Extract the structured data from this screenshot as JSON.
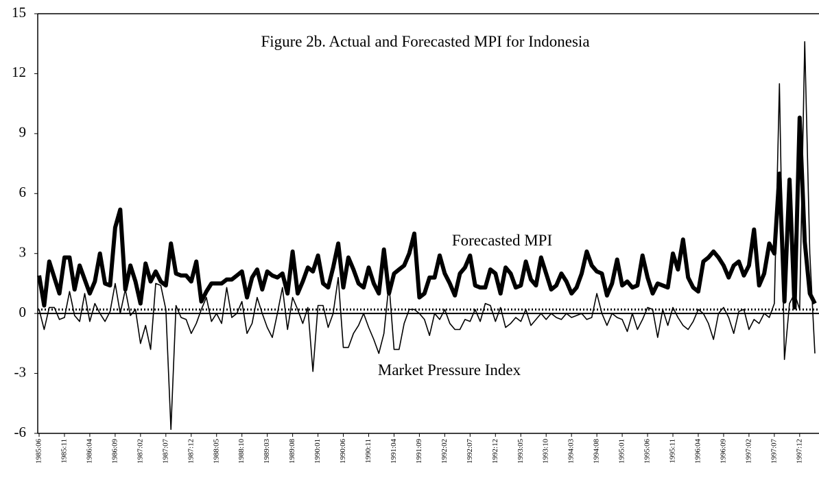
{
  "chart_data": {
    "type": "line",
    "title": "Figure 2b. Actual and Forecasted MPI for Indonesia",
    "categories": [
      "1985:06",
      null,
      null,
      null,
      null,
      "1985:11",
      null,
      null,
      null,
      null,
      "1986:04",
      null,
      null,
      null,
      null,
      "1986:09",
      null,
      null,
      null,
      null,
      "1987:02",
      null,
      null,
      null,
      null,
      "1987:07",
      null,
      null,
      null,
      null,
      "1987:12",
      null,
      null,
      null,
      null,
      "1988:05",
      null,
      null,
      null,
      null,
      "1988:10",
      null,
      null,
      null,
      null,
      "1989:03",
      null,
      null,
      null,
      null,
      "1989:08",
      null,
      null,
      null,
      null,
      "1990:01",
      null,
      null,
      null,
      null,
      "1990:06",
      null,
      null,
      null,
      null,
      "1990:11",
      null,
      null,
      null,
      null,
      "1991:04",
      null,
      null,
      null,
      null,
      "1991:09",
      null,
      null,
      null,
      null,
      "1992:02",
      null,
      null,
      null,
      null,
      "1992:07",
      null,
      null,
      null,
      null,
      "1992:12",
      null,
      null,
      null,
      null,
      "1993:05",
      null,
      null,
      null,
      null,
      "1993:10",
      null,
      null,
      null,
      null,
      "1994:03",
      null,
      null,
      null,
      null,
      "1994:08",
      null,
      null,
      null,
      null,
      "1995:01",
      null,
      null,
      null,
      null,
      "1995:06",
      null,
      null,
      null,
      null,
      "1995:11",
      null,
      null,
      null,
      null,
      "1996:04",
      null,
      null,
      null,
      null,
      "1996:09",
      null,
      null,
      null,
      null,
      "1997:02",
      null,
      null,
      null,
      null,
      "1997:07",
      null,
      null,
      null,
      null,
      "1997:12",
      null,
      null,
      null
    ],
    "series": [
      {
        "name": "Forecasted MPI",
        "color": "#000000",
        "width": 6,
        "values": [
          1.9,
          0.4,
          2.6,
          1.8,
          1.0,
          2.8,
          2.8,
          1.2,
          2.4,
          1.7,
          1.0,
          1.6,
          3.0,
          1.5,
          1.4,
          4.3,
          5.2,
          1.2,
          2.4,
          1.6,
          0.5,
          2.5,
          1.6,
          2.1,
          1.6,
          1.4,
          3.5,
          2.0,
          1.9,
          1.9,
          1.6,
          2.6,
          0.6,
          1.1,
          1.5,
          1.5,
          1.5,
          1.7,
          1.7,
          1.9,
          2.1,
          0.8,
          1.8,
          2.2,
          1.2,
          2.1,
          1.9,
          1.8,
          2.0,
          1.0,
          3.1,
          1.0,
          1.6,
          2.3,
          2.1,
          2.9,
          1.5,
          1.3,
          2.3,
          3.5,
          1.3,
          2.8,
          2.2,
          1.5,
          1.3,
          2.3,
          1.5,
          1.0,
          3.2,
          1.0,
          2.0,
          2.2,
          2.4,
          3.0,
          4.0,
          0.8,
          1.0,
          1.8,
          1.8,
          2.9,
          2.0,
          1.5,
          0.9,
          2.0,
          2.3,
          2.9,
          1.4,
          1.3,
          1.3,
          2.2,
          2.0,
          1.0,
          2.3,
          2.0,
          1.3,
          1.4,
          2.6,
          1.7,
          1.4,
          2.8,
          2.0,
          1.2,
          1.4,
          2.0,
          1.6,
          1.0,
          1.3,
          2.0,
          3.1,
          2.4,
          2.1,
          2.0,
          0.9,
          1.5,
          2.7,
          1.4,
          1.6,
          1.3,
          1.4,
          2.9,
          1.8,
          1.0,
          1.5,
          1.4,
          1.3,
          3.0,
          2.2,
          3.7,
          1.8,
          1.3,
          1.1,
          2.6,
          2.8,
          3.1,
          2.8,
          2.4,
          1.8,
          2.4,
          2.6,
          1.9,
          2.4,
          4.2,
          1.4,
          2.0,
          3.5,
          3.0,
          7.0,
          0.6,
          6.7,
          0.3,
          9.8,
          3.6,
          1.0,
          0.5
        ]
      },
      {
        "name": "Market Pressure Index",
        "color": "#000000",
        "width": 1.6,
        "values": [
          0.2,
          -0.8,
          0.3,
          0.3,
          -0.3,
          -0.2,
          1.1,
          -0.1,
          -0.4,
          1.0,
          -0.4,
          0.5,
          0.0,
          -0.4,
          0.1,
          1.5,
          0.0,
          1.2,
          -0.1,
          0.2,
          -1.5,
          -0.6,
          -1.8,
          1.5,
          1.4,
          0.2,
          -5.8,
          0.4,
          -0.2,
          -0.3,
          -1.0,
          -0.5,
          0.2,
          0.8,
          -0.4,
          0.0,
          -0.5,
          1.3,
          -0.2,
          0.0,
          0.6,
          -1.0,
          -0.5,
          0.8,
          0.0,
          -0.7,
          -1.2,
          0.0,
          1.3,
          -0.8,
          0.8,
          0.2,
          -0.5,
          0.3,
          -2.9,
          0.4,
          0.4,
          -0.7,
          0.0,
          1.8,
          -1.7,
          -1.7,
          -1.0,
          -0.6,
          0.0,
          -0.7,
          -1.3,
          -2.0,
          -1.0,
          1.5,
          -1.8,
          -1.8,
          -0.5,
          0.2,
          0.2,
          0.0,
          -0.3,
          -1.1,
          0.0,
          -0.3,
          0.2,
          -0.5,
          -0.8,
          -0.8,
          -0.3,
          -0.4,
          0.2,
          -0.4,
          0.5,
          0.4,
          -0.4,
          0.3,
          -0.7,
          -0.5,
          -0.2,
          -0.4,
          0.2,
          -0.6,
          -0.3,
          0.0,
          -0.3,
          0.0,
          -0.2,
          -0.3,
          0.0,
          -0.2,
          -0.1,
          0.0,
          -0.3,
          -0.2,
          1.0,
          0.0,
          -0.6,
          0.0,
          -0.2,
          -0.3,
          -0.9,
          0.0,
          -0.8,
          -0.3,
          0.3,
          0.2,
          -1.2,
          0.2,
          -0.6,
          0.3,
          -0.2,
          -0.6,
          -0.8,
          -0.4,
          0.2,
          0.0,
          -0.5,
          -1.3,
          0.0,
          0.3,
          -0.2,
          -1.0,
          0.1,
          0.2,
          -0.8,
          -0.3,
          -0.5,
          0.0,
          -0.2,
          0.5,
          11.5,
          -2.3,
          0.5,
          1.0,
          0.2,
          13.6,
          3.0,
          -2.0
        ]
      }
    ],
    "ylim": [
      -6,
      15
    ],
    "yticks": [
      -6,
      -3,
      0,
      3,
      6,
      9,
      12,
      15
    ],
    "dotted_line": 0.2,
    "grid": false
  }
}
